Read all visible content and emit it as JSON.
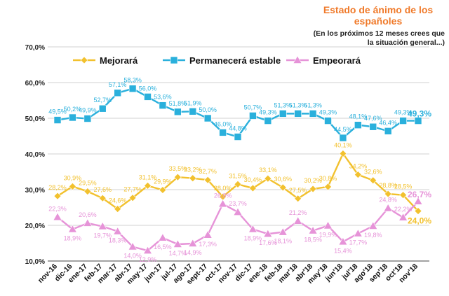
{
  "chart_data": {
    "type": "line",
    "title": "Estado de ánimo de los españoles",
    "subtitle": "(En los próximos 12 meses crees que la situación general...)",
    "categories": [
      "nov-16",
      "dic-16",
      "ene-17",
      "feb-17",
      "mar-17",
      "abr-17",
      "may-17",
      "jun-17",
      "jul-17",
      "ago-17",
      "sept-17",
      "oct-17",
      "nov-17",
      "dic-17",
      "ene-18",
      "feb-18",
      "mar'18",
      "abr'18",
      "may'18",
      "jun'18",
      "jul'18",
      "ago'18",
      "sep'18",
      "oct'18",
      "nov'18"
    ],
    "yticks": [
      "10,0%",
      "20,0%",
      "30,0%",
      "40,0%",
      "50,0%",
      "60,0%",
      "70,0%"
    ],
    "ylim": [
      10,
      70
    ],
    "grid": true,
    "legend": "top",
    "series": [
      {
        "name": "Mejorará",
        "color": "#f2c12e",
        "marker": "diamond",
        "values": [
          28.2,
          30.9,
          29.5,
          27.6,
          24.6,
          27.7,
          31.1,
          29.9,
          33.5,
          33.2,
          32.7,
          28.0,
          31.5,
          30.4,
          33.1,
          30.6,
          27.5,
          30.2,
          30.8,
          40.1,
          34.2,
          32.6,
          28.8,
          28.5,
          24.0
        ],
        "labels": [
          "28,2%",
          "30,9%",
          "29,5%",
          "27,6%",
          "24,6%",
          "27,7%",
          "31,1%",
          "29,9%",
          "33,5%",
          "33,2%",
          "32,7%",
          "28,0%",
          "31,5%",
          "30,4%",
          "33,1%",
          "30,6%",
          "27,5%",
          "30,2%",
          "30,8%",
          "40,1%",
          "34,2%",
          "32,6%",
          "28,8%",
          "28,5%",
          "24,0%"
        ]
      },
      {
        "name": "Permanecerá estable",
        "color": "#2ab0dc",
        "marker": "square",
        "values": [
          49.5,
          50.2,
          49.9,
          52.7,
          57.1,
          58.3,
          56.0,
          53.6,
          51.8,
          51.9,
          50.0,
          46.0,
          44.8,
          50.7,
          49.3,
          51.3,
          51.3,
          51.3,
          49.3,
          44.5,
          48.1,
          47.6,
          46.4,
          49.3,
          49.3
        ],
        "labels": [
          "49,5%",
          "50,2%",
          "49,9%",
          "52,7%",
          "57,1%",
          "58,3%",
          "56,0%",
          "53,6%",
          "51,8%",
          "51,9%",
          "50,0%",
          "46,0%",
          "44,8%",
          "50,7%",
          "49,3%",
          "51,3%",
          "51,3%",
          "51,3%",
          "49,3%",
          "44,5%",
          "48,1%",
          "47,6%",
          "46,4%",
          "49,3%",
          "49,3%"
        ]
      },
      {
        "name": "Empeorará",
        "color": "#e693d8",
        "marker": "triangle",
        "values": [
          22.3,
          18.9,
          20.6,
          19.7,
          18.3,
          14.0,
          12.9,
          16.5,
          14.7,
          14.9,
          17.3,
          26.0,
          23.7,
          18.9,
          17.6,
          18.1,
          21.2,
          18.5,
          19.9,
          15.4,
          17.7,
          19.8,
          24.8,
          22.2,
          26.7
        ],
        "labels": [
          "22,3%",
          "18,9%",
          "20,6%",
          "19,7%",
          "18,3%",
          "14,0%",
          "12,9%",
          "16,5%",
          "14,7%",
          "14,9%",
          "17,3%",
          "26,0%",
          "23,7%",
          "18,9%",
          "17,6%",
          "18,1%",
          "21,2%",
          "18,5%",
          "19,9%",
          "15,4%",
          "17,7%",
          "19,8%",
          "24,8%",
          "22,2%",
          "26,7%"
        ]
      }
    ]
  }
}
